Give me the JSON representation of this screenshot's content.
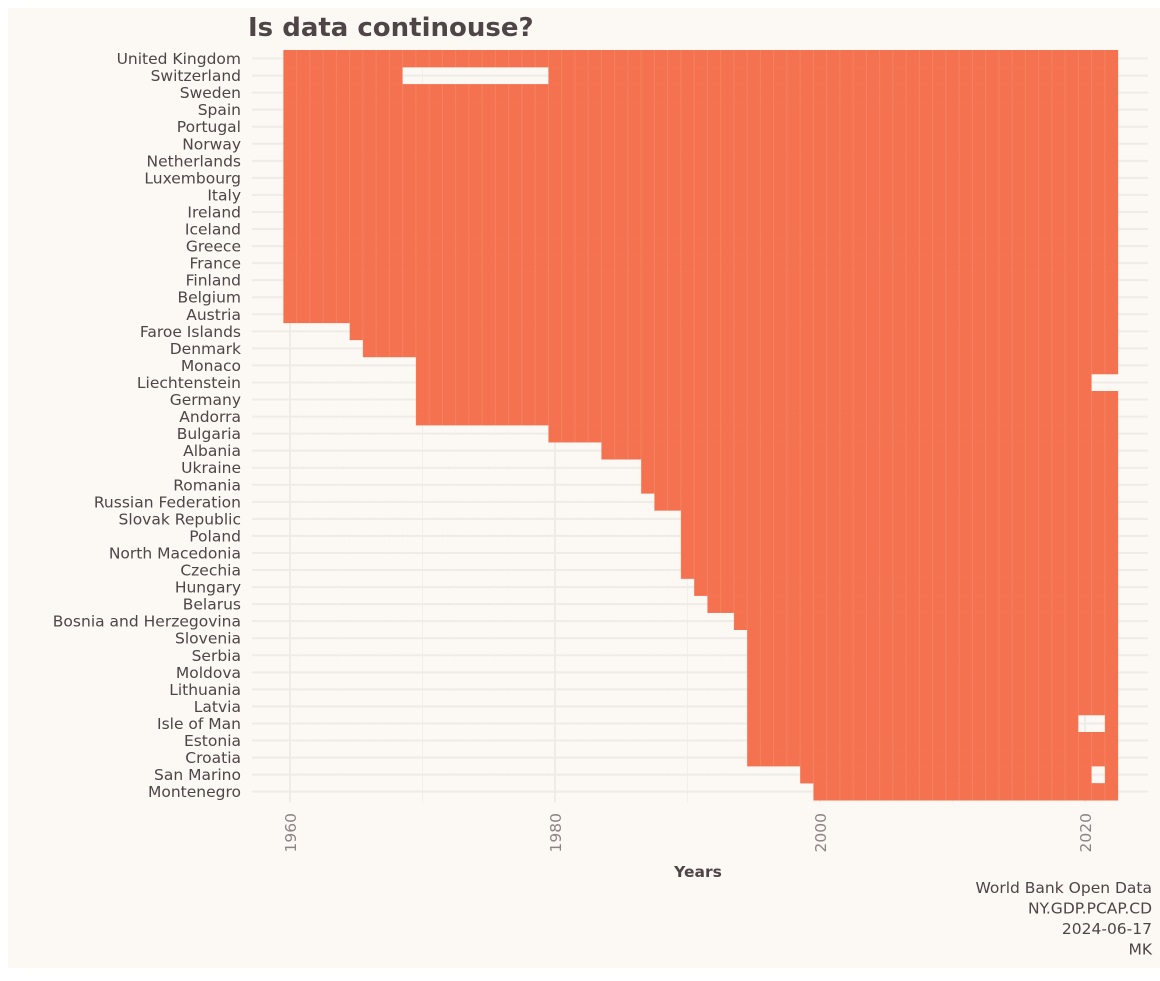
{
  "chart_data": {
    "type": "heatmap",
    "title": "Is data continouse?",
    "xlabel": "Years",
    "ylabel": "",
    "xlim": [
      1959.5,
      2022.5
    ],
    "xticks": [
      1960,
      1980,
      2000,
      2020
    ],
    "fill_color": "#f4724f",
    "grid": true,
    "caption": [
      "World Bank Open Data",
      "NY.GDP.PCAP.CD",
      "2024-06-17",
      "MK"
    ],
    "rows": [
      {
        "country": "United Kingdom",
        "start": 1960,
        "end": 2022,
        "gaps": []
      },
      {
        "country": "Switzerland",
        "start": 1960,
        "end": 2022,
        "gaps": [
          [
            1969,
            1979
          ]
        ]
      },
      {
        "country": "Sweden",
        "start": 1960,
        "end": 2022,
        "gaps": []
      },
      {
        "country": "Spain",
        "start": 1960,
        "end": 2022,
        "gaps": []
      },
      {
        "country": "Portugal",
        "start": 1960,
        "end": 2022,
        "gaps": []
      },
      {
        "country": "Norway",
        "start": 1960,
        "end": 2022,
        "gaps": []
      },
      {
        "country": "Netherlands",
        "start": 1960,
        "end": 2022,
        "gaps": []
      },
      {
        "country": "Luxembourg",
        "start": 1960,
        "end": 2022,
        "gaps": []
      },
      {
        "country": "Italy",
        "start": 1960,
        "end": 2022,
        "gaps": []
      },
      {
        "country": "Ireland",
        "start": 1960,
        "end": 2022,
        "gaps": []
      },
      {
        "country": "Iceland",
        "start": 1960,
        "end": 2022,
        "gaps": []
      },
      {
        "country": "Greece",
        "start": 1960,
        "end": 2022,
        "gaps": []
      },
      {
        "country": "France",
        "start": 1960,
        "end": 2022,
        "gaps": []
      },
      {
        "country": "Finland",
        "start": 1960,
        "end": 2022,
        "gaps": []
      },
      {
        "country": "Belgium",
        "start": 1960,
        "end": 2022,
        "gaps": []
      },
      {
        "country": "Austria",
        "start": 1960,
        "end": 2022,
        "gaps": []
      },
      {
        "country": "Faroe Islands",
        "start": 1965,
        "end": 2022,
        "gaps": []
      },
      {
        "country": "Denmark",
        "start": 1966,
        "end": 2022,
        "gaps": []
      },
      {
        "country": "Monaco",
        "start": 1970,
        "end": 2022,
        "gaps": []
      },
      {
        "country": "Liechtenstein",
        "start": 1970,
        "end": 2022,
        "gaps": [
          [
            2021,
            2022
          ]
        ]
      },
      {
        "country": "Germany",
        "start": 1970,
        "end": 2022,
        "gaps": []
      },
      {
        "country": "Andorra",
        "start": 1970,
        "end": 2022,
        "gaps": []
      },
      {
        "country": "Bulgaria",
        "start": 1980,
        "end": 2022,
        "gaps": []
      },
      {
        "country": "Albania",
        "start": 1984,
        "end": 2022,
        "gaps": []
      },
      {
        "country": "Ukraine",
        "start": 1987,
        "end": 2022,
        "gaps": []
      },
      {
        "country": "Romania",
        "start": 1987,
        "end": 2022,
        "gaps": []
      },
      {
        "country": "Russian Federation",
        "start": 1988,
        "end": 2022,
        "gaps": []
      },
      {
        "country": "Slovak Republic",
        "start": 1990,
        "end": 2022,
        "gaps": []
      },
      {
        "country": "Poland",
        "start": 1990,
        "end": 2022,
        "gaps": []
      },
      {
        "country": "North Macedonia",
        "start": 1990,
        "end": 2022,
        "gaps": []
      },
      {
        "country": "Czechia",
        "start": 1990,
        "end": 2022,
        "gaps": []
      },
      {
        "country": "Hungary",
        "start": 1991,
        "end": 2022,
        "gaps": []
      },
      {
        "country": "Belarus",
        "start": 1992,
        "end": 2022,
        "gaps": []
      },
      {
        "country": "Bosnia and Herzegovina",
        "start": 1994,
        "end": 2022,
        "gaps": []
      },
      {
        "country": "Slovenia",
        "start": 1995,
        "end": 2022,
        "gaps": []
      },
      {
        "country": "Serbia",
        "start": 1995,
        "end": 2022,
        "gaps": []
      },
      {
        "country": "Moldova",
        "start": 1995,
        "end": 2022,
        "gaps": []
      },
      {
        "country": "Lithuania",
        "start": 1995,
        "end": 2022,
        "gaps": []
      },
      {
        "country": "Latvia",
        "start": 1995,
        "end": 2022,
        "gaps": []
      },
      {
        "country": "Isle of Man",
        "start": 1995,
        "end": 2022,
        "gaps": [
          [
            2020,
            2021
          ]
        ]
      },
      {
        "country": "Estonia",
        "start": 1995,
        "end": 2022,
        "gaps": []
      },
      {
        "country": "Croatia",
        "start": 1995,
        "end": 2022,
        "gaps": []
      },
      {
        "country": "San Marino",
        "start": 1999,
        "end": 2022,
        "gaps": [
          [
            2021,
            2021
          ]
        ]
      },
      {
        "country": "Montenegro",
        "start": 2000,
        "end": 2022,
        "gaps": []
      }
    ]
  }
}
